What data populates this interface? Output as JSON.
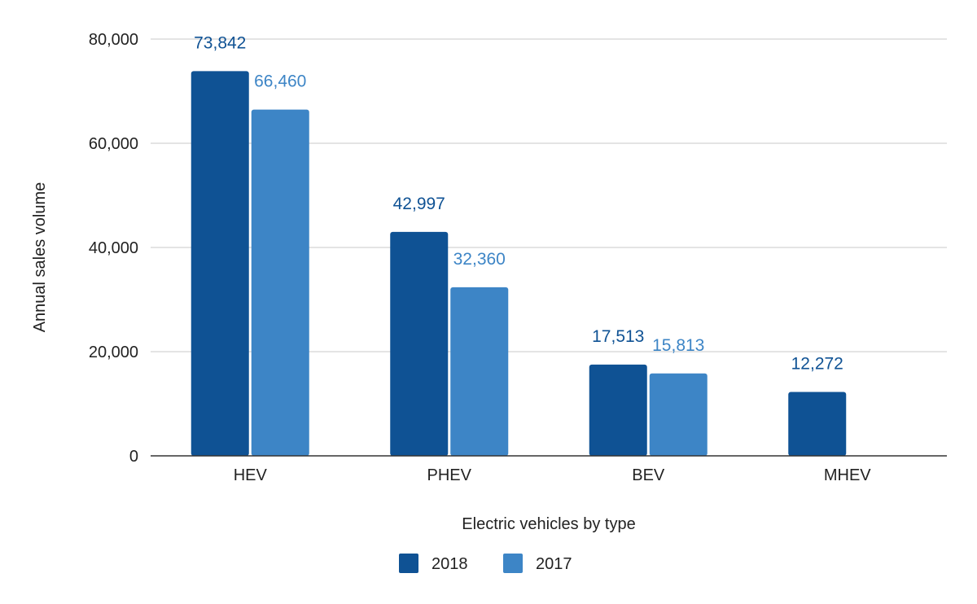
{
  "chart_data": {
    "type": "bar",
    "title": "",
    "xlabel": "Electric vehicles by type",
    "ylabel": "Annual sales volume",
    "categories": [
      "HEV",
      "PHEV",
      "BEV",
      "MHEV"
    ],
    "series": [
      {
        "name": "2018",
        "color": "#0f5294",
        "values": [
          73842,
          42997,
          17513,
          12272
        ],
        "labels": [
          "73,842",
          "42,997",
          "17,513",
          "12,272"
        ]
      },
      {
        "name": "2017",
        "color": "#3d85c6",
        "values": [
          66460,
          32360,
          15813,
          null
        ],
        "labels": [
          "66,460",
          "32,360",
          "15,813",
          ""
        ]
      }
    ],
    "ylim": [
      0,
      80000
    ],
    "yticks": [
      0,
      20000,
      40000,
      60000,
      80000
    ],
    "ytick_labels": [
      "0",
      "20,000",
      "40,000",
      "60,000",
      "80,000"
    ],
    "grid": true,
    "legend_position": "bottom"
  }
}
